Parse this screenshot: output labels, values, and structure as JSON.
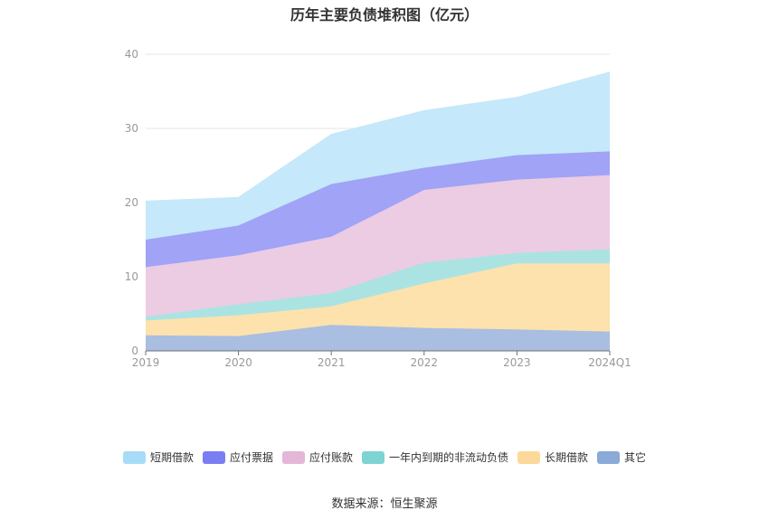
{
  "title": "历年主要负债堆积图（亿元）",
  "source_label": "数据来源：恒生聚源",
  "chart_data": {
    "type": "area",
    "stacked": true,
    "categories": [
      "2019",
      "2020",
      "2021",
      "2022",
      "2023",
      "2024Q1"
    ],
    "ylim": [
      0,
      40
    ],
    "yticks": [
      "0",
      "10",
      "20",
      "30",
      "40"
    ],
    "grid": true,
    "legend_position": "bottom",
    "series": [
      {
        "name": "其它",
        "color": "#a9bee0",
        "values": [
          2.1,
          2.0,
          3.5,
          3.1,
          2.9,
          2.6
        ]
      },
      {
        "name": "长期借款",
        "color": "#fde2ad",
        "values": [
          2.0,
          2.8,
          2.5,
          6.0,
          8.9,
          9.2
        ]
      },
      {
        "name": "一年内到期的非流动负债",
        "color": "#abe3e3",
        "values": [
          0.5,
          1.5,
          1.8,
          2.8,
          1.4,
          1.9
        ]
      },
      {
        "name": "应付账款",
        "color": "#eccce3",
        "values": [
          6.7,
          6.6,
          7.6,
          9.8,
          9.9,
          10.0
        ]
      },
      {
        "name": "应付票据",
        "color": "#a0a3f6",
        "values": [
          3.7,
          4.0,
          7.1,
          3.0,
          3.3,
          3.2
        ]
      },
      {
        "name": "短期借款",
        "color": "#c5e8fa",
        "values": [
          5.2,
          3.8,
          6.7,
          7.7,
          7.8,
          10.7
        ]
      }
    ]
  },
  "legend": [
    {
      "name": "短期借款",
      "color": "#a6dcf7"
    },
    {
      "name": "应付票据",
      "color": "#7b7ef2"
    },
    {
      "name": "应付账款",
      "color": "#e4b6d8"
    },
    {
      "name": "一年内到期的非流动负债",
      "color": "#7ed3d3"
    },
    {
      "name": "长期借款",
      "color": "#fcd99a"
    },
    {
      "name": "其它",
      "color": "#8aaad7"
    }
  ]
}
